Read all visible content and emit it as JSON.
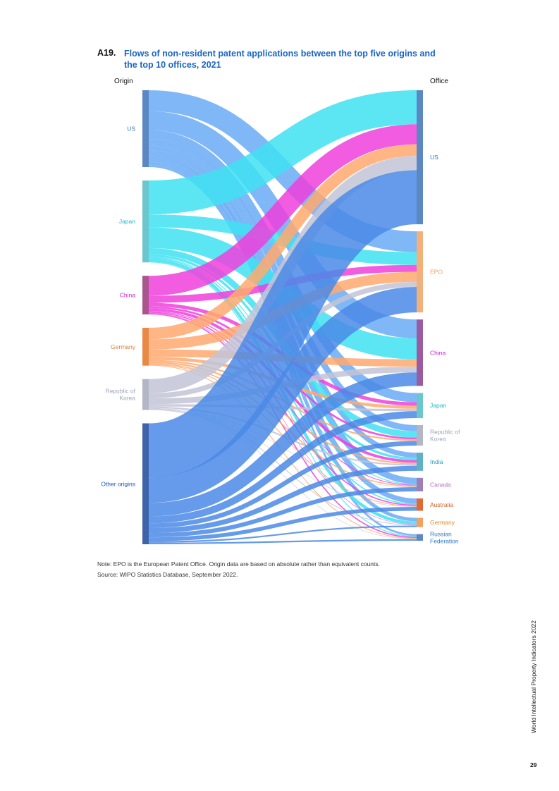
{
  "figure": {
    "number": "A19.",
    "title": "Flows of non-resident patent applications between the top five origins and the top 10 offices, 2021"
  },
  "chart_data": {
    "type": "sankey",
    "source_label": "Origin",
    "target_label": "Office",
    "origins": [
      {
        "name": "US",
        "label_lines": [
          "US"
        ],
        "color": "#5b87c2",
        "label_color": "#2f78c4"
      },
      {
        "name": "Japan",
        "label_lines": [
          "Japan"
        ],
        "color": "#6cc6cd",
        "label_color": "#1fb7c9"
      },
      {
        "name": "China",
        "label_lines": [
          "China"
        ],
        "color": "#a8568d",
        "label_color": "#c81ec8"
      },
      {
        "name": "Germany",
        "label_lines": [
          "Germany"
        ],
        "color": "#e88a45",
        "label_color": "#e07d2e"
      },
      {
        "name": "Republic of Korea",
        "label_lines": [
          "Republic of",
          "Korea"
        ],
        "color": "#b2b6c6",
        "label_color": "#9ea3b8"
      },
      {
        "name": "Other origins",
        "label_lines": [
          "Other origins"
        ],
        "color": "#3d63a8",
        "label_color": "#1b55b5"
      }
    ],
    "offices": [
      {
        "name": "US",
        "label_lines": [
          "US"
        ],
        "color": "#5b87c2",
        "label_color": "#2f78c4"
      },
      {
        "name": "EPO",
        "label_lines": [
          "EPO"
        ],
        "color": "#f2b07a",
        "label_color": "#f0a060"
      },
      {
        "name": "China",
        "label_lines": [
          "China"
        ],
        "color": "#9b5ba0",
        "label_color": "#c81ec8"
      },
      {
        "name": "Japan",
        "label_lines": [
          "Japan"
        ],
        "color": "#6cc6cd",
        "label_color": "#1fb7c9"
      },
      {
        "name": "Republic of Korea",
        "label_lines": [
          "Republic of",
          "Korea"
        ],
        "color": "#b2b6c6",
        "label_color": "#9ea3b8"
      },
      {
        "name": "India",
        "label_lines": [
          "India"
        ],
        "color": "#5fb1c4",
        "label_color": "#1f9fc0"
      },
      {
        "name": "Canada",
        "label_lines": [
          "Canada"
        ],
        "color": "#9a82b9",
        "label_color": "#b566c8"
      },
      {
        "name": "Australia",
        "label_lines": [
          "Australia"
        ],
        "color": "#e06a35",
        "label_color": "#d2601e"
      },
      {
        "name": "Germany",
        "label_lines": [
          "Germany"
        ],
        "color": "#f0a25e",
        "label_color": "#e0892e"
      },
      {
        "name": "Russian Federation",
        "label_lines": [
          "Russian",
          "Federation"
        ],
        "color": "#5b87c2",
        "label_color": "#2f78c4"
      }
    ],
    "flow_colors": {
      "US": "#6aaaf4",
      "Japan": "#3fe2f2",
      "China": "#ee3fdc",
      "Germany": "#ffa96e",
      "Republic of Korea": "#c3c4d6",
      "Other origins": "#4a8ae6"
    },
    "flows": [
      {
        "source": "US",
        "target": "EPO",
        "value": 54
      },
      {
        "source": "US",
        "target": "China",
        "value": 49
      },
      {
        "source": "US",
        "target": "Japan",
        "value": 24
      },
      {
        "source": "US",
        "target": "Republic of Korea",
        "value": 16
      },
      {
        "source": "US",
        "target": "India",
        "value": 13
      },
      {
        "source": "US",
        "target": "Canada",
        "value": 16
      },
      {
        "source": "US",
        "target": "Australia",
        "value": 13
      },
      {
        "source": "US",
        "target": "Germany",
        "value": 9
      },
      {
        "source": "US",
        "target": "Russian Federation",
        "value": 5
      },
      {
        "source": "Japan",
        "target": "US",
        "value": 88
      },
      {
        "source": "Japan",
        "target": "EPO",
        "value": 33
      },
      {
        "source": "Japan",
        "target": "China",
        "value": 54
      },
      {
        "source": "Japan",
        "target": "Republic of Korea",
        "value": 16
      },
      {
        "source": "Japan",
        "target": "India",
        "value": 6
      },
      {
        "source": "Japan",
        "target": "Canada",
        "value": 2
      },
      {
        "source": "Japan",
        "target": "Australia",
        "value": 3
      },
      {
        "source": "Japan",
        "target": "Germany",
        "value": 8
      },
      {
        "source": "Japan",
        "target": "Russian Federation",
        "value": 2
      },
      {
        "source": "China",
        "target": "US",
        "value": 52
      },
      {
        "source": "China",
        "target": "EPO",
        "value": 18
      },
      {
        "source": "China",
        "target": "Japan",
        "value": 9
      },
      {
        "source": "China",
        "target": "Republic of Korea",
        "value": 5
      },
      {
        "source": "China",
        "target": "India",
        "value": 7
      },
      {
        "source": "China",
        "target": "Canada",
        "value": 2
      },
      {
        "source": "China",
        "target": "Australia",
        "value": 3
      },
      {
        "source": "China",
        "target": "Germany",
        "value": 1
      },
      {
        "source": "China",
        "target": "Russian Federation",
        "value": 3
      },
      {
        "source": "Germany",
        "target": "US",
        "value": 30
      },
      {
        "source": "Germany",
        "target": "EPO",
        "value": 26
      },
      {
        "source": "Germany",
        "target": "China",
        "value": 19
      },
      {
        "source": "Germany",
        "target": "Japan",
        "value": 8
      },
      {
        "source": "Germany",
        "target": "Republic of Korea",
        "value": 4
      },
      {
        "source": "Germany",
        "target": "India",
        "value": 4
      },
      {
        "source": "Germany",
        "target": "Canada",
        "value": 3
      },
      {
        "source": "Germany",
        "target": "Australia",
        "value": 2
      },
      {
        "source": "Germany",
        "target": "Russian Federation",
        "value": 2
      },
      {
        "source": "Republic of Korea",
        "target": "US",
        "value": 37
      },
      {
        "source": "Republic of Korea",
        "target": "EPO",
        "value": 13
      },
      {
        "source": "Republic of Korea",
        "target": "China",
        "value": 15
      },
      {
        "source": "Republic of Korea",
        "target": "Japan",
        "value": 6
      },
      {
        "source": "Republic of Korea",
        "target": "India",
        "value": 4
      },
      {
        "source": "Republic of Korea",
        "target": "Canada",
        "value": 1
      },
      {
        "source": "Republic of Korea",
        "target": "Australia",
        "value": 1
      },
      {
        "source": "Republic of Korea",
        "target": "Germany",
        "value": 2
      },
      {
        "source": "Republic of Korea",
        "target": "Russian Federation",
        "value": 1
      },
      {
        "source": "Other origins",
        "target": "US",
        "value": 140
      },
      {
        "source": "Other origins",
        "target": "EPO",
        "value": 66
      },
      {
        "source": "Other origins",
        "target": "China",
        "value": 35
      },
      {
        "source": "Other origins",
        "target": "Japan",
        "value": 18
      },
      {
        "source": "Other origins",
        "target": "Republic of Korea",
        "value": 12
      },
      {
        "source": "Other origins",
        "target": "India",
        "value": 13
      },
      {
        "source": "Other origins",
        "target": "Canada",
        "value": 11
      },
      {
        "source": "Other origins",
        "target": "Australia",
        "value": 10
      },
      {
        "source": "Other origins",
        "target": "Germany",
        "value": 4
      },
      {
        "source": "Other origins",
        "target": "Russian Federation",
        "value": 4
      }
    ]
  },
  "notes": {
    "note": "Note: EPO is the European Patent Office. Origin data are based on absolute rather than equivalent counts.",
    "source": "Source: WIPO Statistics Database, September 2022."
  },
  "footer": {
    "publication": "World Intellectual Property Indicators 2022",
    "page_number": "29"
  }
}
